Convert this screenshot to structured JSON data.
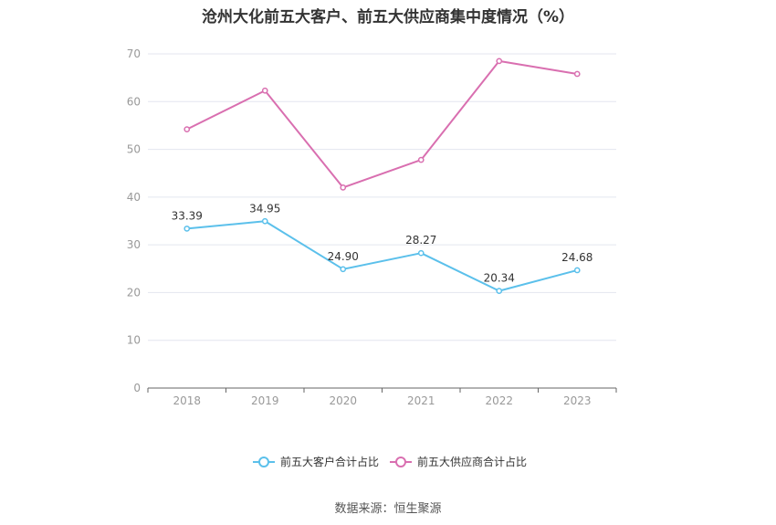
{
  "chart_data": {
    "type": "line",
    "title": "沧州大化前五大客户、前五大供应商集中度情况（%）",
    "categories": [
      "2018",
      "2019",
      "2020",
      "2021",
      "2022",
      "2023"
    ],
    "ylim": [
      0,
      70
    ],
    "yticks": [
      0,
      10,
      20,
      30,
      40,
      50,
      60,
      70
    ],
    "grid": true,
    "legend_position": "bottom",
    "series": [
      {
        "name": "前五大客户合计占比",
        "color": "#5bc0eb",
        "values": [
          33.39,
          34.95,
          24.9,
          28.27,
          20.34,
          24.68
        ],
        "labels": [
          "33.39",
          "34.95",
          "24.90",
          "28.27",
          "20.34",
          "24.68"
        ]
      },
      {
        "name": "前五大供应商合计占比",
        "color": "#d96fb0",
        "values": [
          54.2,
          62.3,
          42.0,
          47.8,
          68.5,
          65.8
        ],
        "labels": []
      }
    ]
  },
  "source": "数据来源：恒生聚源"
}
